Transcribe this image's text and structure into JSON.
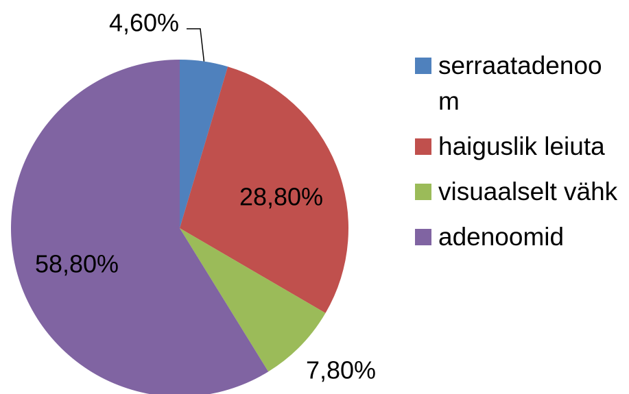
{
  "chart_data": {
    "type": "pie",
    "categories": [
      "serraatadenoom",
      "haiguslik leiuta",
      "visuaalselt vähk",
      "adenoomid"
    ],
    "values": [
      4.6,
      28.8,
      7.8,
      58.8
    ],
    "value_labels": [
      "4,60%",
      "28,80%",
      "7,80%",
      "58,80%"
    ],
    "colors": [
      "#4f81bd",
      "#c0504d",
      "#9bbb59",
      "#8064a2"
    ],
    "legend": "right"
  }
}
